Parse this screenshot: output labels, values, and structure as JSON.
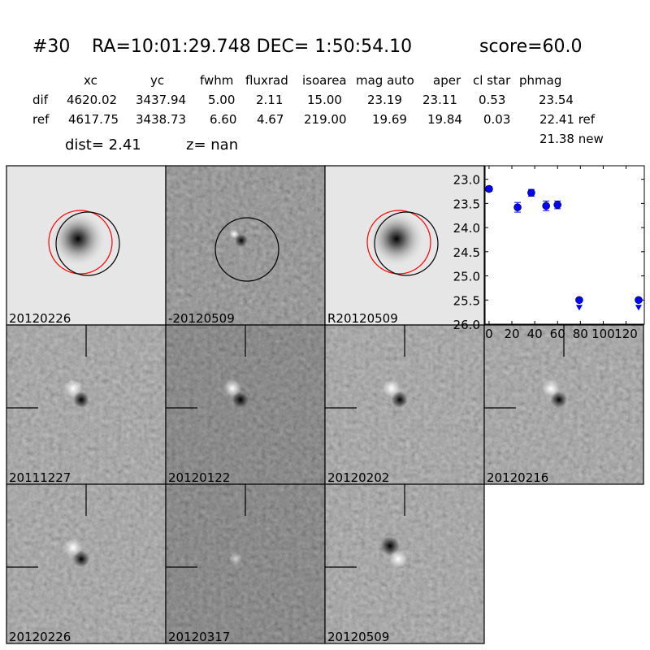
{
  "header": {
    "id": "#30",
    "coords": "RA=10:01:29.748 DEC= 1:50:54.10",
    "score": "score=60.0"
  },
  "table": {
    "columns": [
      "xc",
      "yc",
      "fwhm",
      "fluxrad",
      "isoarea",
      "mag auto",
      "aper",
      "cl star",
      "phmag"
    ],
    "rows": [
      {
        "label": "dif",
        "values": [
          "4620.02",
          "3437.94",
          "5.00",
          "2.11",
          "15.00",
          "23.19",
          "23.11",
          "0.53",
          "23.54"
        ]
      },
      {
        "label": "ref",
        "values": [
          "4617.75",
          "3438.73",
          "6.60",
          "4.67",
          "219.00",
          "19.69",
          "19.84",
          "0.03",
          "22.41 ref"
        ]
      }
    ],
    "extra": "21.38 new",
    "dist": "dist=  2.41",
    "z": "z=   nan"
  },
  "stamps": [
    {
      "label": "20120226",
      "label_color": "#000000",
      "kind": "ref",
      "circles": [
        "red",
        "black"
      ]
    },
    {
      "label": "-20120509",
      "label_color": "#000000",
      "kind": "diff",
      "circles": [
        "black"
      ]
    },
    {
      "label": "R20120509",
      "label_color": "#000000",
      "kind": "ref",
      "circles": [
        "red",
        "black"
      ]
    },
    {
      "label": "20111227",
      "label_color": "#000000",
      "kind": "dipole"
    },
    {
      "label": "20120122",
      "label_color": "#000000",
      "kind": "dipole"
    },
    {
      "label": "20120202",
      "label_color": "#000000",
      "kind": "dipole"
    },
    {
      "label": "20120216",
      "label_color": "#000000",
      "kind": "dipole"
    },
    {
      "label": "20120226",
      "label_color": "#ff0000",
      "kind": "dipole"
    },
    {
      "label": "20120317",
      "label_color": "#000000",
      "kind": "faint"
    },
    {
      "label": "20120509",
      "label_color": "#000000",
      "kind": "dipole-inv"
    }
  ],
  "chart_data": {
    "type": "scatter",
    "ylim": [
      26.0,
      22.72
    ],
    "xlim": [
      -3.5,
      136
    ],
    "inverted_y": true,
    "x_ticks": [
      "0",
      "20",
      "40",
      "60",
      "80",
      "100",
      "120"
    ],
    "y_ticks": [
      "23.0",
      "23.5",
      "24.0",
      "24.5",
      "25.0",
      "25.5",
      "26.0"
    ],
    "color": "#0000ff",
    "points": [
      {
        "x": 0,
        "y": 23.2,
        "err": 0.05,
        "upper_limit": false
      },
      {
        "x": 25,
        "y": 23.58,
        "err": 0.1,
        "upper_limit": false
      },
      {
        "x": 37,
        "y": 23.28,
        "err": 0.07,
        "upper_limit": false
      },
      {
        "x": 50,
        "y": 23.55,
        "err": 0.1,
        "upper_limit": false
      },
      {
        "x": 60,
        "y": 23.53,
        "err": 0.08,
        "upper_limit": false
      },
      {
        "x": 79,
        "y": 25.5,
        "err": 0,
        "upper_limit": true
      },
      {
        "x": 131,
        "y": 25.5,
        "err": 0,
        "upper_limit": true
      }
    ]
  }
}
